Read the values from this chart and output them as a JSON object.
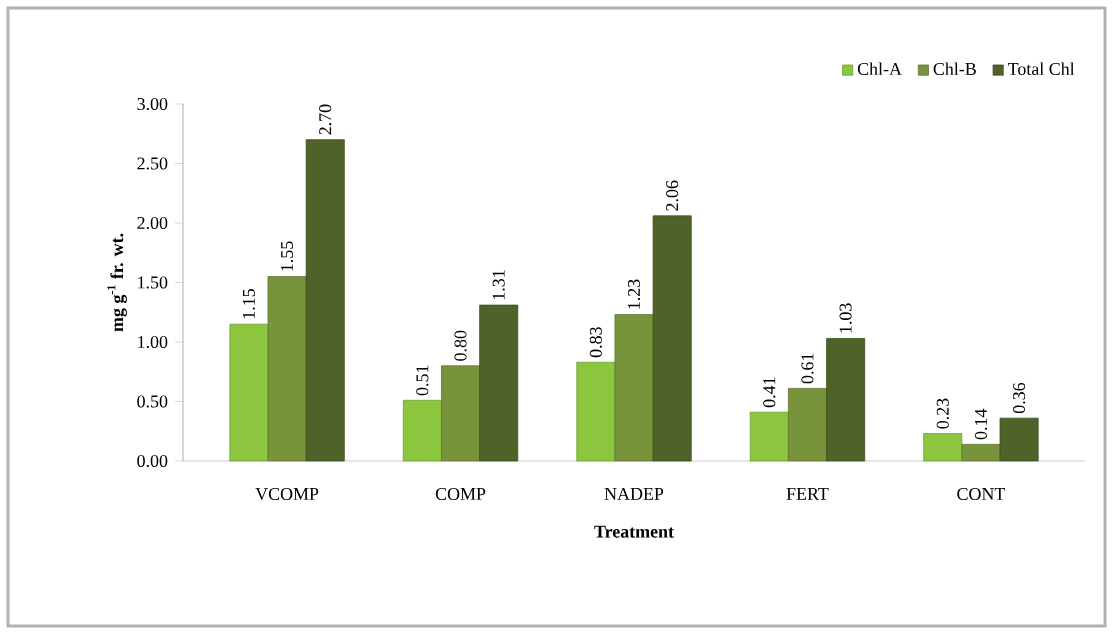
{
  "chart_data": {
    "type": "bar",
    "xlabel": "Treatment",
    "ylabel": "mg g$^{-1}$ fr. wt.",
    "categories": [
      "VCOMP",
      "COMP",
      "NADEP",
      "FERT",
      "CONT"
    ],
    "series": [
      {
        "name": "Chl-A",
        "color": "#8cc63e",
        "values": [
          1.15,
          0.51,
          0.83,
          0.41,
          0.23
        ],
        "value_labels": [
          "1.15",
          "0.51",
          "0.83",
          "0.41",
          "0.23"
        ]
      },
      {
        "name": "Chl-B",
        "color": "#77933c",
        "values": [
          1.55,
          0.8,
          1.23,
          0.61,
          0.14
        ],
        "value_labels": [
          "1.55",
          "0.80",
          "1.23",
          "0.61",
          "0.14"
        ]
      },
      {
        "name": "Total Chl",
        "color": "#4f6228",
        "values": [
          2.7,
          1.31,
          2.06,
          1.03,
          0.36
        ],
        "value_labels": [
          "2.70",
          "1.31",
          "2.06",
          "1.03",
          "0.36"
        ]
      }
    ],
    "ylim": [
      0,
      3
    ],
    "yticks": [
      {
        "value": 0,
        "label": "0.00"
      },
      {
        "value": 0.5,
        "label": "0.50"
      },
      {
        "value": 1,
        "label": "1.00"
      },
      {
        "value": 1.5,
        "label": "1.50"
      },
      {
        "value": 2,
        "label": "2.00"
      },
      {
        "value": 2.5,
        "label": "2.50"
      },
      {
        "value": 3,
        "label": "3.00"
      }
    ],
    "legend": "top right",
    "grid": false
  }
}
